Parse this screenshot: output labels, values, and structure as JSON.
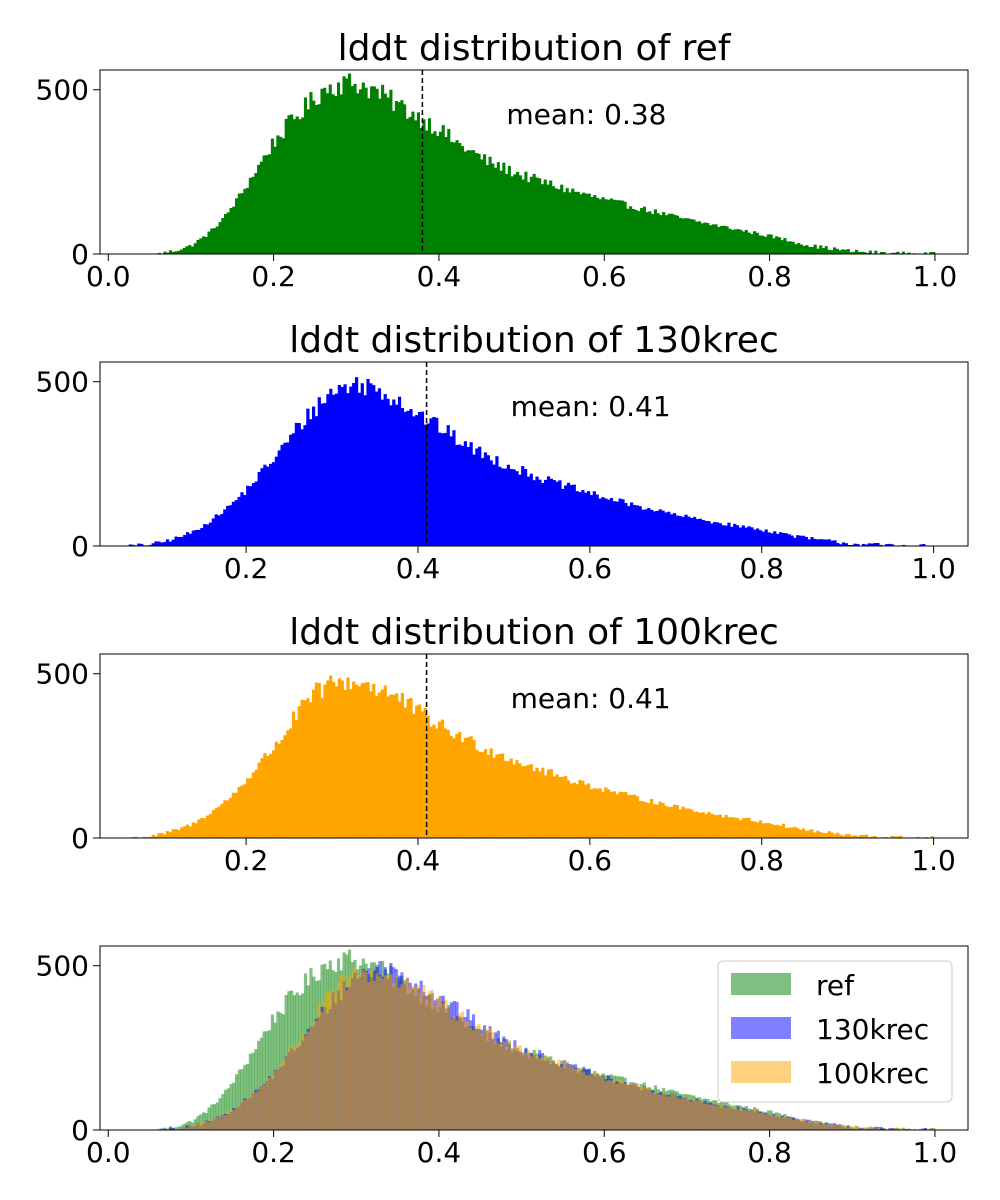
{
  "chart_data": [
    {
      "type": "bar",
      "subtype": "histogram",
      "title": "lddt distribution of ref",
      "annotation": "mean: 0.38",
      "mean": 0.38,
      "color": "#008000",
      "xlim": [
        -0.01,
        1.04
      ],
      "ylim": [
        0,
        560
      ],
      "xticks": [
        0.0,
        0.2,
        0.4,
        0.6,
        0.8,
        1.0
      ],
      "xtick_labels": [
        "0.0",
        "0.2",
        "0.4",
        "0.6",
        "0.8",
        "1.0"
      ],
      "yticks": [
        0,
        500
      ],
      "ytick_labels": [
        "0",
        "500"
      ],
      "bin_range": [
        0.0,
        1.0
      ],
      "bins": 300,
      "envelope_x": [
        0.06,
        0.08,
        0.1,
        0.12,
        0.14,
        0.16,
        0.18,
        0.2,
        0.22,
        0.24,
        0.26,
        0.28,
        0.3,
        0.32,
        0.34,
        0.36,
        0.38,
        0.4,
        0.42,
        0.44,
        0.46,
        0.48,
        0.5,
        0.55,
        0.6,
        0.65,
        0.7,
        0.75,
        0.8,
        0.85,
        0.9,
        0.95,
        1.0
      ],
      "envelope_y": [
        0,
        10,
        25,
        60,
        110,
        180,
        260,
        340,
        400,
        450,
        500,
        520,
        520,
        500,
        470,
        440,
        410,
        380,
        340,
        310,
        280,
        260,
        240,
        200,
        165,
        135,
        105,
        80,
        55,
        25,
        8,
        2,
        0
      ]
    },
    {
      "type": "bar",
      "subtype": "histogram",
      "title": "lddt distribution of 130krec",
      "annotation": "mean: 0.41",
      "mean": 0.41,
      "color": "#0000ff",
      "xlim": [
        0.03,
        1.04
      ],
      "ylim": [
        0,
        560
      ],
      "xticks": [
        0.2,
        0.4,
        0.6,
        0.8,
        1.0
      ],
      "xtick_labels": [
        "0.2",
        "0.4",
        "0.6",
        "0.8",
        "1.0"
      ],
      "yticks": [
        0,
        500
      ],
      "ytick_labels": [
        "0",
        "500"
      ],
      "bin_range": [
        0.0,
        1.0
      ],
      "bins": 300,
      "envelope_x": [
        0.06,
        0.08,
        0.1,
        0.12,
        0.14,
        0.16,
        0.18,
        0.2,
        0.22,
        0.24,
        0.26,
        0.28,
        0.3,
        0.32,
        0.34,
        0.36,
        0.38,
        0.4,
        0.42,
        0.44,
        0.46,
        0.48,
        0.5,
        0.55,
        0.6,
        0.65,
        0.7,
        0.75,
        0.8,
        0.85,
        0.9,
        0.95,
        1.0
      ],
      "envelope_y": [
        0,
        3,
        10,
        25,
        45,
        80,
        120,
        170,
        230,
        290,
        360,
        420,
        470,
        490,
        490,
        470,
        440,
        400,
        370,
        335,
        300,
        275,
        250,
        200,
        160,
        125,
        95,
        70,
        50,
        25,
        8,
        2,
        0
      ]
    },
    {
      "type": "bar",
      "subtype": "histogram",
      "title": "lddt distribution of 100krec",
      "annotation": "mean: 0.41",
      "mean": 0.41,
      "color": "#ffa500",
      "xlim": [
        0.03,
        1.04
      ],
      "ylim": [
        0,
        560
      ],
      "xticks": [
        0.2,
        0.4,
        0.6,
        0.8,
        1.0
      ],
      "xtick_labels": [
        "0.2",
        "0.4",
        "0.6",
        "0.8",
        "1.0"
      ],
      "yticks": [
        0,
        500
      ],
      "ytick_labels": [
        "0",
        "500"
      ],
      "bin_range": [
        0.0,
        1.0
      ],
      "bins": 300,
      "envelope_x": [
        0.06,
        0.08,
        0.1,
        0.12,
        0.14,
        0.16,
        0.18,
        0.2,
        0.22,
        0.24,
        0.26,
        0.28,
        0.3,
        0.32,
        0.34,
        0.36,
        0.38,
        0.4,
        0.42,
        0.44,
        0.46,
        0.48,
        0.5,
        0.55,
        0.6,
        0.65,
        0.7,
        0.75,
        0.8,
        0.85,
        0.9,
        0.95,
        1.0
      ],
      "envelope_y": [
        0,
        3,
        10,
        25,
        45,
        80,
        120,
        175,
        240,
        300,
        380,
        440,
        470,
        475,
        470,
        450,
        420,
        385,
        350,
        320,
        295,
        270,
        250,
        200,
        160,
        125,
        95,
        70,
        50,
        25,
        8,
        2,
        0
      ]
    },
    {
      "type": "bar",
      "subtype": "overlaid-histogram",
      "xlim": [
        -0.01,
        1.04
      ],
      "ylim": [
        0,
        560
      ],
      "xticks": [
        0.0,
        0.2,
        0.4,
        0.6,
        0.8,
        1.0
      ],
      "xtick_labels": [
        "0.0",
        "0.2",
        "0.4",
        "0.6",
        "0.8",
        "1.0"
      ],
      "yticks": [
        0,
        500
      ],
      "ytick_labels": [
        "0",
        "500"
      ],
      "bin_range": [
        0.0,
        1.0
      ],
      "bins": 300,
      "legend_position": "top-right",
      "series": [
        {
          "name": "ref",
          "color": "#008000",
          "alpha": 0.5,
          "source_panel": 0
        },
        {
          "name": "130krec",
          "color": "#0000ff",
          "alpha": 0.5,
          "source_panel": 1
        },
        {
          "name": "100krec",
          "color": "#ffa500",
          "alpha": 0.5,
          "source_panel": 2
        }
      ]
    }
  ]
}
